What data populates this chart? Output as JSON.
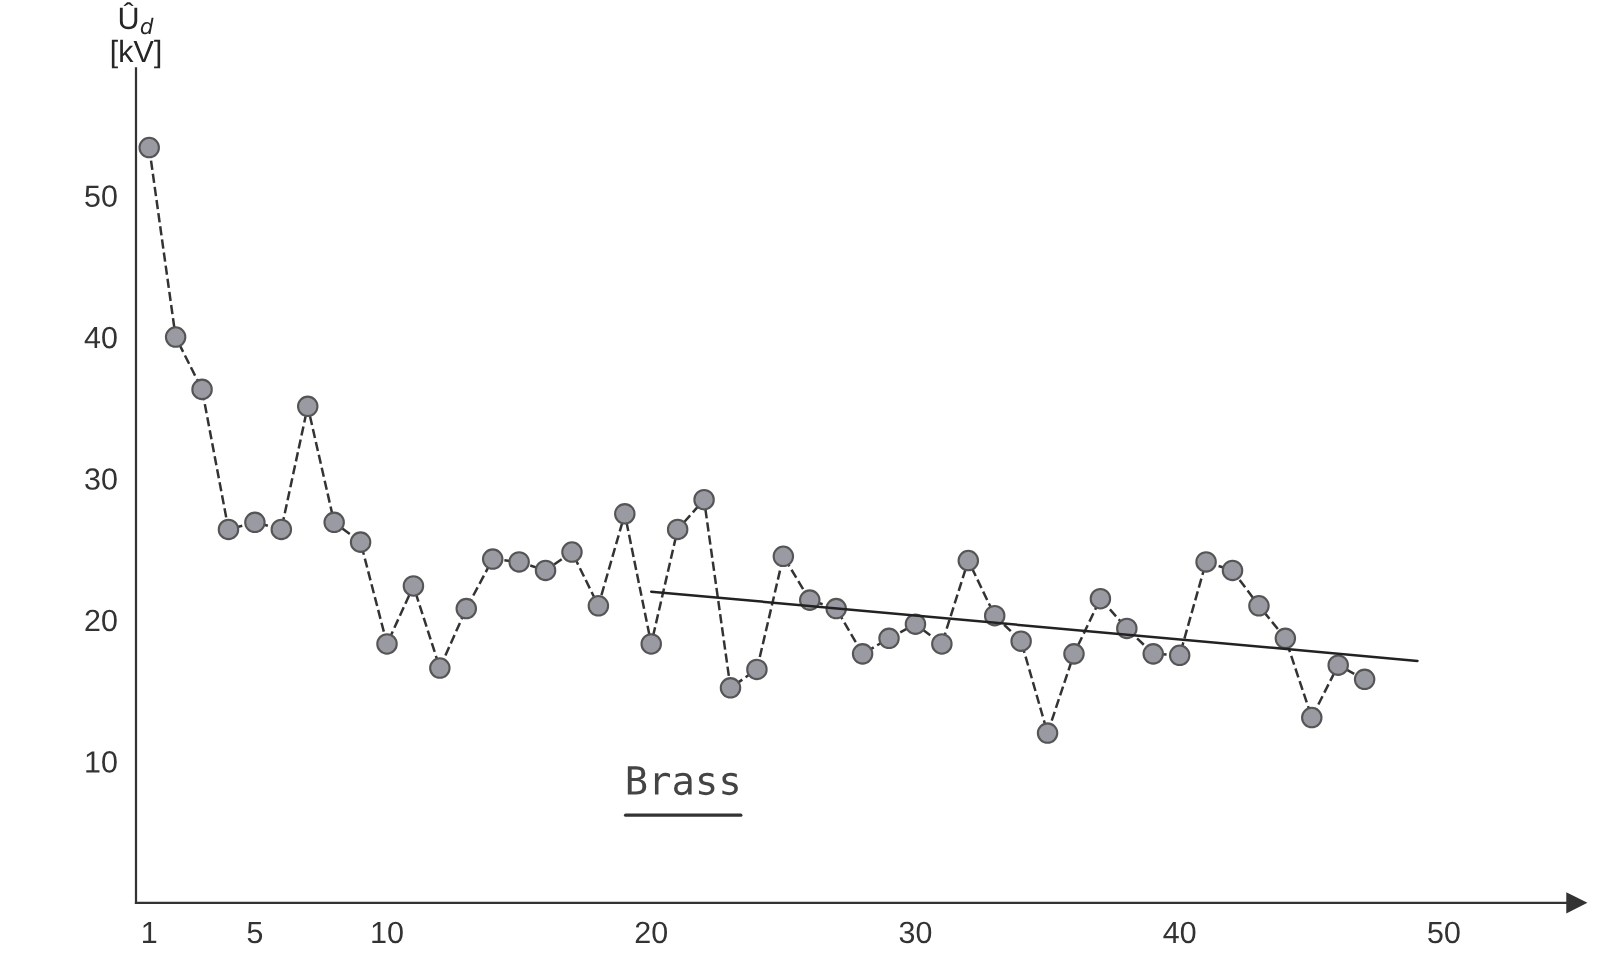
{
  "chart_data": {
    "type": "line",
    "ylabel": "Û$_{d}$\n[kV]",
    "x": [
      1,
      2,
      3,
      4,
      5,
      6,
      7,
      8,
      9,
      10,
      11,
      12,
      13,
      14,
      15,
      16,
      17,
      18,
      19,
      20,
      21,
      22,
      23,
      24,
      25,
      26,
      27,
      28,
      29,
      30,
      31,
      32,
      33,
      34,
      35,
      36,
      37,
      38,
      39,
      40,
      41,
      42,
      43,
      44,
      45,
      46,
      47
    ],
    "series": [
      {
        "color": "#9a9aa2",
        "marker": "circle",
        "line_style": "dashed",
        "values": [
          53.4,
          40,
          36.3,
          26.4,
          26.9,
          26.4,
          35.1,
          26.9,
          25.5,
          18.3,
          22.4,
          16.6,
          20.8,
          24.3,
          24.1,
          23.5,
          24.8,
          21.0,
          27.5,
          18.3,
          26.4,
          28.5,
          15.2,
          16.5,
          24.5,
          21.4,
          20.8,
          17.6,
          18.7,
          19.7,
          18.3,
          24.2,
          20.3,
          18.5,
          12.0,
          17.6,
          21.5,
          19.4,
          17.6,
          17.5,
          24.1,
          23.5,
          21.0,
          18.7,
          13.1,
          16.8,
          15.8
        ]
      },
      {
        "color": "#222222",
        "marker": "none",
        "line_style": "solid",
        "x": [
          20,
          49
        ],
        "values": [
          22.0,
          17.1
        ]
      }
    ],
    "xlim": [
      0.5,
      55
    ],
    "ylim": [
      0,
      59
    ],
    "xticks": [
      1,
      5,
      10,
      20,
      30,
      40,
      50
    ],
    "yticks": [
      10,
      20,
      30,
      40,
      50
    ],
    "grid": false,
    "legend": false,
    "annotations": [
      "Brass"
    ]
  }
}
